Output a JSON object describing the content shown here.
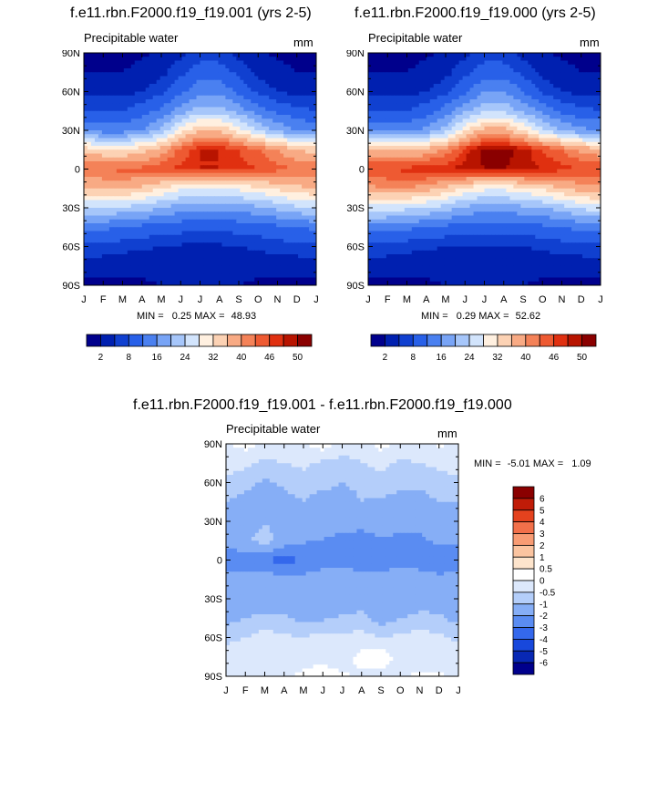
{
  "palette": {
    "full": [
      "#00008c",
      "#0020b0",
      "#1040d0",
      "#2860e8",
      "#4a80f0",
      "#78a4f6",
      "#a6c6fa",
      "#d2e4fc",
      "#fff0e0",
      "#fcd2b4",
      "#f8aa84",
      "#f48258",
      "#ee5a32",
      "#e03010",
      "#b81400",
      "#8a0000"
    ],
    "diff": [
      "#00008c",
      "#0828b4",
      "#1848dc",
      "#3468ec",
      "#5a8cf2",
      "#86aef6",
      "#b4cefa",
      "#dce8fc",
      "#ffffff",
      "#fde4cc",
      "#fbc4a0",
      "#f89c74",
      "#f2704a",
      "#e4421e",
      "#c01c08",
      "#8a0000"
    ]
  },
  "plots": [
    {
      "title": "f.e11.rbn.F2000.f19_f19.001 (yrs 2-5)",
      "field": "Precipitable water",
      "units": "mm",
      "min_label": "MIN =",
      "min_value": "0.25",
      "max_label": "MAX =",
      "max_value": "48.93",
      "colorbar_labels": [
        "2",
        "8",
        "16",
        "24",
        "32",
        "40",
        "46",
        "50"
      ]
    },
    {
      "title": "f.e11.rbn.F2000.f19_f19.000 (yrs 2-5)",
      "field": "Precipitable water",
      "units": "mm",
      "min_label": "MIN =",
      "min_value": "0.29",
      "max_label": "MAX =",
      "max_value": "52.62",
      "colorbar_labels": [
        "2",
        "8",
        "16",
        "24",
        "32",
        "40",
        "46",
        "50"
      ]
    },
    {
      "title": "f.e11.rbn.F2000.f19_f19.001 - f.e11.rbn.F2000.f19_f19.000",
      "field": "Precipitable water",
      "units": "mm",
      "min_label": "MIN =",
      "min_value": "-5.01",
      "max_label": "MAX =",
      "max_value": "1.09",
      "colorbar_labels": [
        "6",
        "5",
        "4",
        "3",
        "2",
        "1",
        "0.5",
        "0",
        "-0.5",
        "-1",
        "-2",
        "-3",
        "-4",
        "-5",
        "-6"
      ]
    }
  ],
  "chart_data": [
    {
      "type": "heatmap",
      "title": "f.e11.rbn.F2000.f19_f19.001 (yrs 2-5)",
      "subtitle": "Precipitable water",
      "units": "mm",
      "x": [
        "J",
        "F",
        "M",
        "A",
        "M",
        "J",
        "J",
        "A",
        "S",
        "O",
        "N",
        "D",
        "J"
      ],
      "y_ticks": [
        "90N",
        "60N",
        "30N",
        "0",
        "30S",
        "60S",
        "90S"
      ],
      "ylim": [
        -90,
        90
      ],
      "levels": [
        2,
        5,
        8,
        12,
        16,
        20,
        24,
        28,
        32,
        36,
        40,
        43,
        46,
        48,
        50
      ],
      "lat": [
        -90,
        -75,
        -60,
        -45,
        -30,
        -15,
        0,
        15,
        30,
        45,
        60,
        75,
        90
      ],
      "values": [
        [
          1,
          1,
          1.2,
          1.5,
          2,
          2.5,
          3,
          2.5,
          2,
          1.5,
          1.2,
          1,
          1
        ],
        [
          3,
          3,
          3,
          3,
          3,
          3,
          3,
          3,
          3,
          3,
          3,
          3,
          3
        ],
        [
          7,
          7,
          6,
          5.5,
          5,
          4.5,
          4.5,
          4.5,
          5,
          5.5,
          6.5,
          7,
          7
        ],
        [
          13,
          13,
          12,
          11,
          10,
          9.5,
          9,
          9,
          9.5,
          10,
          11,
          12,
          13
        ],
        [
          24,
          24,
          23,
          22,
          20,
          18,
          17,
          17,
          18,
          19,
          21,
          23,
          24
        ],
        [
          36,
          37,
          37,
          35,
          32,
          29,
          27,
          27,
          29,
          31,
          33,
          35,
          36
        ],
        [
          43,
          43,
          44,
          44,
          45,
          47,
          48,
          48,
          47,
          46,
          44,
          43,
          43
        ],
        [
          34,
          33,
          32,
          34,
          38,
          44,
          48,
          48,
          46,
          43,
          40,
          36,
          34
        ],
        [
          15,
          14,
          14,
          16,
          21,
          30,
          36,
          36,
          30,
          24,
          19,
          16,
          15
        ],
        [
          8,
          8,
          8,
          10,
          13,
          18,
          22,
          22,
          18,
          14,
          11,
          9,
          8
        ],
        [
          4,
          4,
          4,
          5,
          7,
          11,
          15,
          15,
          11,
          7,
          5,
          4,
          4
        ],
        [
          2,
          2,
          2,
          3,
          4,
          7,
          10,
          10,
          7,
          4,
          3,
          2,
          2
        ],
        [
          1,
          1,
          1,
          1.5,
          2.5,
          4,
          6,
          6,
          4,
          2.5,
          1.5,
          1,
          1
        ]
      ],
      "min": 0.25,
      "max": 48.93
    },
    {
      "type": "heatmap",
      "title": "f.e11.rbn.F2000.f19_f19.000 (yrs 2-5)",
      "subtitle": "Precipitable water",
      "units": "mm",
      "x": [
        "J",
        "F",
        "M",
        "A",
        "M",
        "J",
        "J",
        "A",
        "S",
        "O",
        "N",
        "D",
        "J"
      ],
      "y_ticks": [
        "90N",
        "60N",
        "30N",
        "0",
        "30S",
        "60S",
        "90S"
      ],
      "ylim": [
        -90,
        90
      ],
      "levels": [
        2,
        5,
        8,
        12,
        16,
        20,
        24,
        28,
        32,
        36,
        40,
        43,
        46,
        48,
        50
      ],
      "lat": [
        -90,
        -75,
        -60,
        -45,
        -30,
        -15,
        0,
        15,
        30,
        45,
        60,
        75,
        90
      ],
      "values": [
        [
          1,
          1,
          1.2,
          1.5,
          2,
          2.5,
          3,
          2.5,
          2,
          1.5,
          1.2,
          1,
          1
        ],
        [
          3,
          3,
          3,
          3,
          3,
          3,
          3,
          3,
          3,
          3,
          3,
          3,
          3
        ],
        [
          7,
          7,
          6,
          5.5,
          5,
          4.5,
          4.5,
          4.5,
          5,
          5.5,
          6.5,
          7,
          7
        ],
        [
          14,
          14,
          13,
          12,
          11,
          10,
          9.5,
          9.5,
          10,
          11,
          12,
          13,
          14
        ],
        [
          26,
          26,
          25,
          24,
          22,
          19,
          18,
          18,
          19,
          20,
          22,
          25,
          26
        ],
        [
          39,
          40,
          40,
          38,
          35,
          31,
          29,
          29,
          31,
          33,
          36,
          38,
          39
        ],
        [
          46,
          46,
          47,
          48,
          48,
          49,
          50,
          50,
          49,
          48,
          47,
          46,
          46
        ],
        [
          37,
          36,
          35,
          37,
          41,
          47,
          51,
          51,
          49,
          46,
          43,
          39,
          37
        ],
        [
          16,
          15,
          15,
          17,
          22,
          31,
          38,
          38,
          32,
          25,
          20,
          17,
          16
        ],
        [
          8,
          8,
          8,
          10,
          14,
          19,
          23,
          23,
          19,
          15,
          11,
          9,
          8
        ],
        [
          4,
          4,
          4,
          5,
          7,
          11,
          16,
          16,
          12,
          7,
          5,
          4,
          4
        ],
        [
          2,
          2,
          2,
          3,
          4,
          7,
          10,
          10,
          7,
          4,
          3,
          2,
          2
        ],
        [
          1,
          1,
          1,
          1.5,
          2.5,
          4,
          6,
          6,
          4,
          2.5,
          1.5,
          1,
          1
        ]
      ],
      "min": 0.29,
      "max": 52.62
    },
    {
      "type": "heatmap",
      "title": "f.e11.rbn.F2000.f19_f19.001 - f.e11.rbn.F2000.f19_f19.000",
      "subtitle": "Precipitable water",
      "units": "mm",
      "x": [
        "J",
        "F",
        "M",
        "A",
        "M",
        "J",
        "J",
        "A",
        "S",
        "O",
        "N",
        "D",
        "J"
      ],
      "y_ticks": [
        "90N",
        "60N",
        "30N",
        "0",
        "30S",
        "60S",
        "90S"
      ],
      "ylim": [
        -90,
        90
      ],
      "levels": [
        -6,
        -5,
        -4,
        -3,
        -2,
        -1,
        -0.5,
        0,
        0.5,
        1,
        2,
        3,
        4,
        5,
        6
      ],
      "lat": [
        -90,
        -75,
        -60,
        -45,
        -30,
        -15,
        0,
        15,
        30,
        45,
        60,
        75,
        90
      ],
      "values": [
        [
          -0.2,
          -0.3,
          -0.2,
          -0.1,
          0.1,
          0.2,
          0.1,
          -0.1,
          -0.2,
          -0.1,
          0.1,
          0.1,
          -0.2
        ],
        [
          -0.3,
          -0.3,
          -0.2,
          -0.3,
          -0.2,
          -0.1,
          -0.3,
          0.2,
          0.3,
          -0.2,
          -0.3,
          -0.3,
          -0.3
        ],
        [
          -0.6,
          -0.5,
          -0.3,
          -0.4,
          -0.5,
          -0.3,
          -0.4,
          -0.3,
          -0.5,
          -0.4,
          -0.3,
          -0.4,
          -0.6
        ],
        [
          -1.2,
          -1,
          -0.8,
          -0.9,
          -1.2,
          -1.1,
          -0.9,
          -0.8,
          -1.3,
          -1,
          -0.8,
          -0.9,
          -1.2
        ],
        [
          -1.1,
          -1.4,
          -1.8,
          -1.5,
          -1.2,
          -1.3,
          -1.5,
          -1.4,
          -1.2,
          -1.6,
          -1.4,
          -1.3,
          -1.1
        ],
        [
          -1.6,
          -1.8,
          -1.6,
          -1.4,
          -1.7,
          -1.5,
          -1.3,
          -1.6,
          -1.8,
          -1.5,
          -1.4,
          -1.7,
          -1.6
        ],
        [
          -2.6,
          -2.4,
          -2.8,
          -3.6,
          -2.8,
          -2.4,
          -2.6,
          -2.5,
          -2.4,
          -2.3,
          -2.6,
          -2.8,
          -2.6
        ],
        [
          -1.8,
          -1.2,
          -0.6,
          -1.4,
          -1.9,
          -2,
          -2.3,
          -2.4,
          -2.1,
          -2.4,
          -2.2,
          -1.8,
          -1.8
        ],
        [
          -1.5,
          -1.3,
          -1.1,
          -1.2,
          -1.5,
          -1.6,
          -1.5,
          -1.7,
          -1.4,
          -1.3,
          -1.6,
          -1.5,
          -1.5
        ],
        [
          -1,
          -1.2,
          -1.4,
          -1.2,
          -1,
          -1.3,
          -1.2,
          -1,
          -1.1,
          -1.3,
          -1.2,
          -1,
          -1
        ],
        [
          -0.6,
          -0.8,
          -1.1,
          -0.9,
          -0.7,
          -0.8,
          -1,
          -0.9,
          -0.6,
          -0.8,
          -0.9,
          -0.7,
          -0.6
        ],
        [
          -0.3,
          -0.4,
          -0.6,
          -0.5,
          -0.4,
          -0.6,
          -0.7,
          -0.5,
          -0.4,
          -0.6,
          -0.5,
          -0.4,
          -0.3
        ],
        [
          -0.1,
          0.2,
          -0.1,
          -0.2,
          -0.1,
          0.3,
          -0.2,
          -0.3,
          0.2,
          -0.1,
          -0.2,
          0.1,
          -0.1
        ]
      ],
      "min": -5.01,
      "max": 1.09
    }
  ]
}
